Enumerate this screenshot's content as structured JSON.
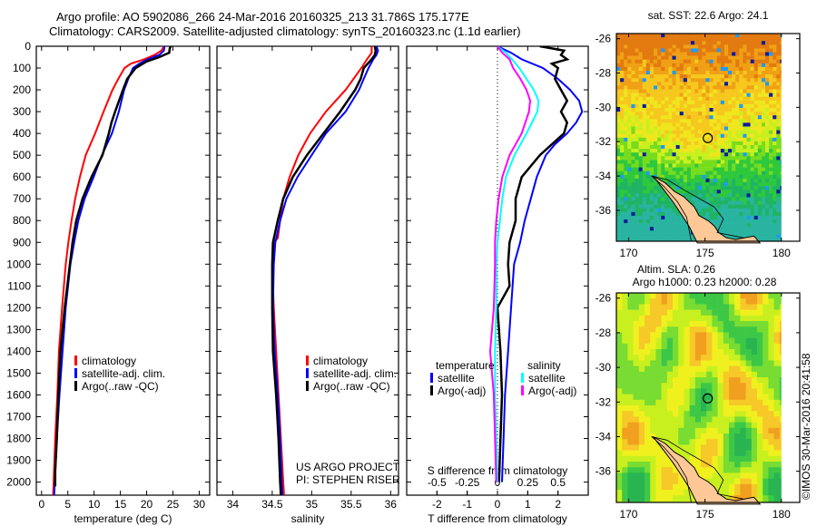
{
  "header": {
    "line1": "Argo profile: AO 5902086_266 24-Mar-2016 20160325_213 31.786S 175.177E",
    "line2": "Climatology: CARS2009. Satellite-adjusted climatology: synTS_20160323.nc (1.1d earlier)"
  },
  "watermark": "©IMOS 30-Mar-2016 20:41:58",
  "chart_data": [
    {
      "id": "temperature",
      "type": "line",
      "xlabel": "temperature (deg C)",
      "ylabel": "",
      "xlim": [
        -1,
        32
      ],
      "ylim": [
        2060,
        0
      ],
      "xticks": [
        0,
        5,
        10,
        15,
        20,
        25,
        30
      ],
      "yticks": [
        0,
        100,
        200,
        300,
        400,
        500,
        600,
        700,
        800,
        900,
        1000,
        1100,
        1200,
        1300,
        1400,
        1500,
        1600,
        1700,
        1800,
        1900,
        2000
      ],
      "legend": [
        "climatology",
        "satellite-adj. clim.",
        "Argo(..raw -QC)"
      ],
      "legend_placement": "lower-middle",
      "series": [
        {
          "name": "climatology",
          "color": "#ff0000",
          "depth": [
            0,
            20,
            40,
            60,
            80,
            100,
            150,
            200,
            300,
            400,
            500,
            600,
            700,
            800,
            900,
            1000,
            1200,
            1400,
            1600,
            1800,
            2000,
            2060
          ],
          "values": [
            23.3,
            22.8,
            21.5,
            19.5,
            17.0,
            15.8,
            14.6,
            13.5,
            11.8,
            10.2,
            8.4,
            7.3,
            6.4,
            5.7,
            5.1,
            4.6,
            3.9,
            3.3,
            3.0,
            2.6,
            2.3,
            2.2
          ]
        },
        {
          "name": "satellite-adj. clim.",
          "color": "#0000ff",
          "depth": [
            0,
            20,
            40,
            60,
            80,
            100,
            150,
            200,
            300,
            400,
            500,
            600,
            700,
            800,
            900,
            1000,
            1200,
            1400,
            1600,
            1800,
            2000,
            2060
          ],
          "values": [
            23.4,
            23.3,
            22.4,
            20.2,
            18.6,
            17.4,
            16.5,
            15.7,
            14.7,
            13.4,
            11.5,
            9.9,
            8.2,
            7.0,
            6.2,
            5.5,
            4.6,
            4.0,
            3.4,
            2.9,
            2.5,
            2.4
          ]
        },
        {
          "name": "Argo(..raw -QC)",
          "color": "#000000",
          "depth": [
            0,
            10,
            30,
            50,
            70,
            100,
            150,
            200,
            300,
            350,
            400,
            500,
            600,
            700,
            800,
            900,
            1000,
            1200,
            1400,
            1600,
            1800,
            1950,
            2020
          ],
          "values": [
            24.6,
            24.4,
            24.3,
            22.4,
            20.0,
            17.9,
            16.3,
            15.5,
            14.0,
            13.3,
            12.8,
            11.6,
            9.5,
            7.8,
            6.6,
            5.9,
            5.4,
            4.4,
            3.6,
            3.2,
            2.9,
            2.6,
            2.6
          ]
        }
      ]
    },
    {
      "id": "salinity",
      "type": "line",
      "xlabel": "salinity",
      "ylabel": "",
      "xlim": [
        33.8,
        36.1
      ],
      "ylim": [
        2060,
        0
      ],
      "xticks": [
        34,
        34.5,
        35,
        35.5,
        36
      ],
      "xtick_labels": [
        "34",
        "34.5",
        "35",
        "35.5",
        "36"
      ],
      "legend": [
        "climatology",
        "satellite-adj. clim.",
        "Argo(..raw -QC)"
      ],
      "legend_placement": "lower-right",
      "annotation": [
        "US ARGO PROJECT",
        "PI: STEPHEN RISER"
      ],
      "series": [
        {
          "name": "climatology",
          "color": "#ff0000",
          "depth": [
            0,
            30,
            60,
            100,
            200,
            300,
            400,
            500,
            600,
            700,
            800,
            880,
            900,
            1000,
            1200,
            1400,
            1600,
            1800,
            2000,
            2060
          ],
          "values": [
            35.76,
            35.76,
            35.7,
            35.63,
            35.43,
            35.18,
            34.98,
            34.83,
            34.72,
            34.64,
            34.6,
            34.57,
            34.52,
            34.5,
            34.52,
            34.55,
            34.58,
            34.61,
            34.64,
            34.65
          ]
        },
        {
          "name": "satellite-adj. clim.",
          "color": "#0000ff",
          "depth": [
            0,
            20,
            40,
            60,
            100,
            150,
            200,
            300,
            400,
            500,
            600,
            700,
            800,
            900,
            1000,
            1200,
            1400,
            1600,
            1800,
            2000,
            2060
          ],
          "values": [
            35.82,
            35.84,
            35.82,
            35.78,
            35.72,
            35.66,
            35.6,
            35.43,
            35.18,
            35.0,
            34.82,
            34.68,
            34.6,
            34.54,
            34.52,
            34.51,
            34.53,
            34.57,
            34.6,
            34.62,
            34.63
          ]
        },
        {
          "name": "Argo(..raw -QC)",
          "color": "#000000",
          "depth": [
            0,
            20,
            40,
            60,
            100,
            150,
            200,
            300,
            400,
            500,
            600,
            700,
            800,
            900,
            1000,
            1200,
            1400,
            1600,
            1800,
            2000,
            2060
          ],
          "values": [
            35.8,
            35.81,
            35.8,
            35.76,
            35.66,
            35.62,
            35.55,
            35.36,
            35.15,
            34.94,
            34.76,
            34.64,
            34.57,
            34.51,
            34.5,
            34.5,
            34.51,
            34.55,
            34.58,
            34.6,
            34.61
          ]
        }
      ]
    },
    {
      "id": "difference",
      "type": "line",
      "xlabel": "T difference from climatology",
      "x2label": "S difference from climatology",
      "xlim": [
        -3,
        3
      ],
      "ylim": [
        2060,
        0
      ],
      "xticks": [
        -2,
        -1,
        0,
        1,
        2
      ],
      "x2lim": [
        -0.75,
        0.75
      ],
      "x2ticks": [
        -0.5,
        -0.25,
        0,
        0.25,
        0.5
      ],
      "x2tick_labels": [
        "-0.5",
        "-0.25",
        "0",
        "0.25",
        "0.5"
      ],
      "legend_temperature_title": "temperature",
      "legend_salinity_title": "salinity",
      "legend": [
        "satellite",
        "Argo(-adj)",
        "satellite",
        "Argo(-adj)"
      ],
      "legend_placement": "lower-middle",
      "series": [
        {
          "name": "T satellite",
          "group": "temperature",
          "color": "#0000ff",
          "axis": "T",
          "depth": [
            0,
            30,
            60,
            100,
            150,
            200,
            250,
            300,
            350,
            400,
            450,
            500,
            600,
            700,
            800,
            900,
            1000,
            1200,
            1400,
            1600,
            1800,
            2000
          ],
          "values": [
            0.0,
            0.45,
            0.8,
            1.5,
            2.0,
            2.4,
            2.7,
            2.8,
            2.6,
            2.3,
            1.9,
            1.6,
            1.3,
            1.1,
            0.9,
            0.75,
            0.55,
            0.45,
            0.35,
            0.25,
            0.2,
            0.15
          ]
        },
        {
          "name": "T Argo(-adj)",
          "group": "temperature",
          "color": "#000000",
          "axis": "T",
          "depth": [
            0,
            20,
            40,
            60,
            80,
            100,
            150,
            200,
            250,
            300,
            350,
            400,
            500,
            600,
            700,
            800,
            900,
            1000,
            1100,
            1200,
            1400,
            1600,
            1800,
            2000
          ],
          "values": [
            1.4,
            2.2,
            2.1,
            2.3,
            1.8,
            2.0,
            1.9,
            2.1,
            2.3,
            2.1,
            2.3,
            2.2,
            1.4,
            0.8,
            0.6,
            0.6,
            0.4,
            0.35,
            0.4,
            0.0,
            0.1,
            0.15,
            0.1,
            0.05
          ]
        },
        {
          "name": "S satellite",
          "group": "salinity",
          "color": "#00ffff",
          "axis": "S",
          "depth": [
            0,
            30,
            60,
            100,
            150,
            200,
            250,
            300,
            400,
            500,
            600,
            700,
            800,
            900,
            1000,
            1200,
            1400,
            1600,
            1800,
            2000
          ],
          "values": [
            0.0,
            0.07,
            0.12,
            0.18,
            0.24,
            0.3,
            0.34,
            0.33,
            0.24,
            0.14,
            0.07,
            0.04,
            0.02,
            0.0,
            -0.01,
            -0.01,
            -0.02,
            -0.02,
            -0.01,
            0.0
          ]
        },
        {
          "name": "S Argo(-adj)",
          "group": "salinity",
          "color": "#ff00ff",
          "axis": "S",
          "depth": [
            0,
            30,
            60,
            100,
            150,
            200,
            250,
            300,
            400,
            500,
            600,
            700,
            800,
            900,
            1000,
            1200,
            1400,
            1600,
            1800,
            2000
          ],
          "values": [
            0.0,
            0.04,
            0.1,
            0.13,
            0.19,
            0.24,
            0.27,
            0.26,
            0.2,
            0.1,
            0.04,
            0.01,
            -0.01,
            -0.02,
            -0.02,
            -0.03,
            -0.06,
            -0.03,
            -0.02,
            -0.01
          ]
        }
      ]
    },
    {
      "id": "sst-map",
      "type": "heatmap",
      "title": "sat. SST: 22.6 Argo: 24.1",
      "xlim": [
        169.2,
        181.2
      ],
      "ylim": [
        -37.8,
        -25.7
      ],
      "xticks": [
        170,
        175,
        180
      ],
      "yticks": [
        -26,
        -28,
        -30,
        -32,
        -34,
        -36
      ],
      "profile_marker": {
        "lon": 175.18,
        "lat": -31.79
      }
    },
    {
      "id": "sla-map",
      "type": "heatmap",
      "title_line1": "Altim. SLA: 0.26",
      "title_line2": "Argo h1000: 0.23 h2000: 0.28",
      "xlim": [
        169.2,
        181.2
      ],
      "ylim": [
        -37.8,
        -25.7
      ],
      "xticks": [
        170,
        175,
        180
      ],
      "yticks": [
        -26,
        -28,
        -30,
        -32,
        -34,
        -36
      ],
      "profile_marker": {
        "lon": 175.18,
        "lat": -31.79
      }
    }
  ],
  "colors": {
    "land": "#ffc896",
    "coast": "#000000"
  }
}
